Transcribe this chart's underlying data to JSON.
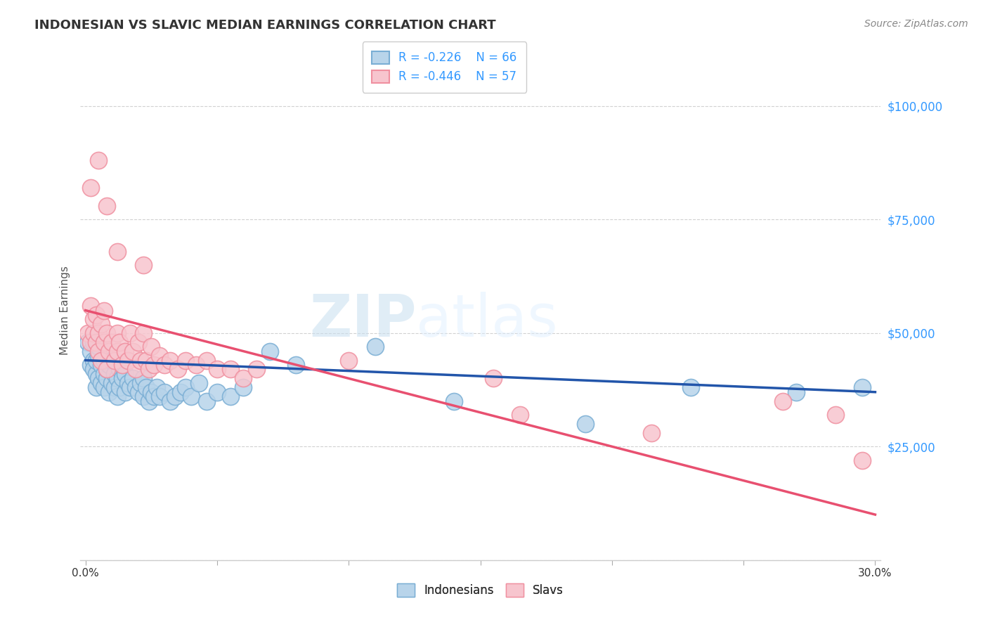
{
  "title": "INDONESIAN VS SLAVIC MEDIAN EARNINGS CORRELATION CHART",
  "source": "Source: ZipAtlas.com",
  "ylabel": "Median Earnings",
  "xlim": [
    -0.002,
    0.302
  ],
  "ylim": [
    0,
    110000
  ],
  "yticks": [
    0,
    25000,
    50000,
    75000,
    100000
  ],
  "ytick_labels": [
    "",
    "$25,000",
    "$50,000",
    "$75,000",
    "$100,000"
  ],
  "xticks": [
    0.0,
    0.05,
    0.1,
    0.15,
    0.2,
    0.25,
    0.3
  ],
  "xtick_labels": [
    "0.0%",
    "",
    "",
    "",
    "",
    "",
    "30.0%"
  ],
  "blue_marker_face": "#b8d4ea",
  "blue_marker_edge": "#7aaed4",
  "pink_marker_face": "#f7c5ce",
  "pink_marker_edge": "#f090a0",
  "line_blue": "#2255aa",
  "line_pink": "#e85070",
  "legend_label_1": "R = -0.226    N = 66",
  "legend_label_2": "R = -0.446    N = 57",
  "legend_label_blue": "Indonesians",
  "legend_label_pink": "Slavs",
  "watermark_zip": "ZIP",
  "watermark_atlas": "atlas",
  "indonesian_x": [
    0.001,
    0.002,
    0.002,
    0.003,
    0.003,
    0.003,
    0.004,
    0.004,
    0.004,
    0.005,
    0.005,
    0.005,
    0.006,
    0.006,
    0.007,
    0.007,
    0.007,
    0.008,
    0.008,
    0.009,
    0.009,
    0.01,
    0.01,
    0.011,
    0.011,
    0.012,
    0.012,
    0.013,
    0.013,
    0.014,
    0.014,
    0.015,
    0.015,
    0.016,
    0.017,
    0.018,
    0.019,
    0.02,
    0.021,
    0.022,
    0.022,
    0.023,
    0.024,
    0.025,
    0.026,
    0.027,
    0.028,
    0.03,
    0.032,
    0.034,
    0.036,
    0.038,
    0.04,
    0.043,
    0.046,
    0.05,
    0.055,
    0.06,
    0.07,
    0.08,
    0.11,
    0.14,
    0.19,
    0.23,
    0.27,
    0.295
  ],
  "indonesian_y": [
    48000,
    46000,
    43000,
    44000,
    42000,
    48000,
    41000,
    38000,
    44000,
    40000,
    45000,
    47000,
    43000,
    39000,
    41000,
    44000,
    38000,
    40000,
    42000,
    43000,
    37000,
    39000,
    44000,
    41000,
    38000,
    40000,
    36000,
    38000,
    42000,
    40000,
    43000,
    37000,
    41000,
    39000,
    38000,
    40000,
    38000,
    37000,
    39000,
    40000,
    36000,
    38000,
    35000,
    37000,
    36000,
    38000,
    36000,
    37000,
    35000,
    36000,
    37000,
    38000,
    36000,
    39000,
    35000,
    37000,
    36000,
    38000,
    46000,
    43000,
    47000,
    35000,
    30000,
    38000,
    37000,
    38000
  ],
  "slavic_x": [
    0.001,
    0.002,
    0.002,
    0.003,
    0.003,
    0.004,
    0.004,
    0.005,
    0.005,
    0.006,
    0.006,
    0.007,
    0.007,
    0.008,
    0.008,
    0.009,
    0.01,
    0.011,
    0.012,
    0.012,
    0.013,
    0.014,
    0.015,
    0.016,
    0.017,
    0.018,
    0.019,
    0.02,
    0.021,
    0.022,
    0.023,
    0.024,
    0.025,
    0.026,
    0.028,
    0.03,
    0.032,
    0.035,
    0.038,
    0.042,
    0.046,
    0.05,
    0.055,
    0.06,
    0.065,
    0.1,
    0.155,
    0.165,
    0.215,
    0.265,
    0.285,
    0.295,
    0.002,
    0.005,
    0.008,
    0.012,
    0.022
  ],
  "slavic_y": [
    50000,
    56000,
    48000,
    50000,
    53000,
    48000,
    54000,
    50000,
    46000,
    52000,
    44000,
    48000,
    55000,
    50000,
    42000,
    46000,
    48000,
    44000,
    50000,
    46000,
    48000,
    43000,
    46000,
    44000,
    50000,
    46000,
    42000,
    48000,
    44000,
    50000,
    44000,
    42000,
    47000,
    43000,
    45000,
    43000,
    44000,
    42000,
    44000,
    43000,
    44000,
    42000,
    42000,
    40000,
    42000,
    44000,
    40000,
    32000,
    28000,
    35000,
    32000,
    22000,
    82000,
    88000,
    78000,
    68000,
    65000
  ]
}
